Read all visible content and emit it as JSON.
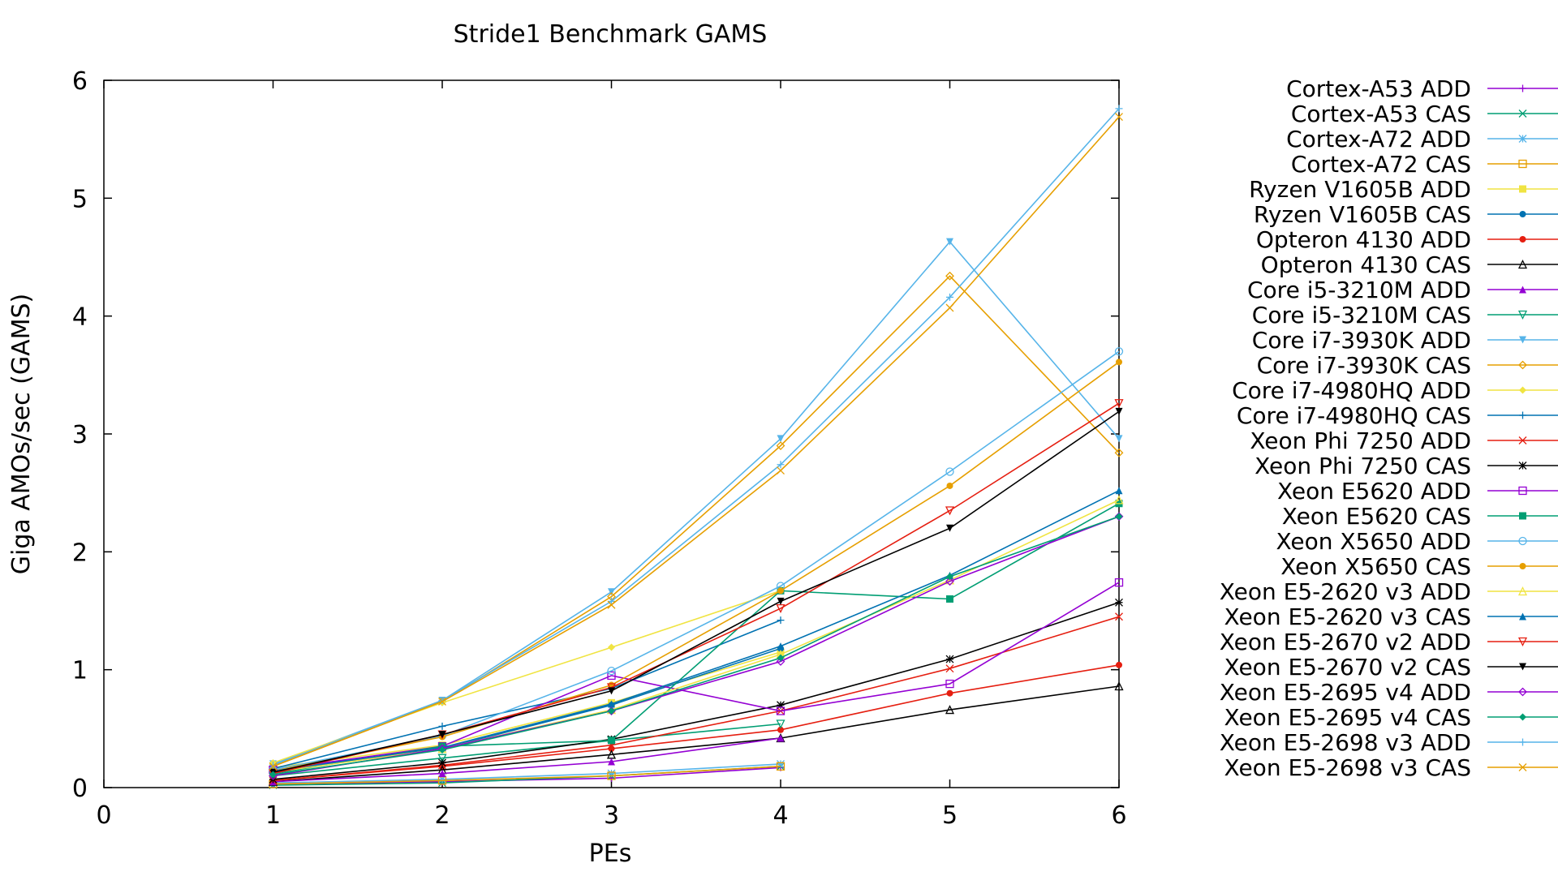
{
  "chart_data": {
    "type": "line",
    "title": "Stride1 Benchmark GAMS",
    "xlabel": "PEs",
    "ylabel": "Giga AMOs/sec (GAMS)",
    "xlim": [
      0,
      6
    ],
    "ylim": [
      0,
      6
    ],
    "xticks": [
      "0",
      "1",
      "2",
      "3",
      "4",
      "5",
      "6"
    ],
    "yticks": [
      "0",
      "1",
      "2",
      "3",
      "4",
      "5",
      "6"
    ],
    "grid": false,
    "legend_position": "right",
    "series": [
      {
        "name": "Cortex-A53 ADD",
        "color": "#9400d3",
        "marker": "plus",
        "x": [
          1,
          2,
          3,
          4
        ],
        "y": [
          0.03,
          0.05,
          0.08,
          0.17
        ]
      },
      {
        "name": "Cortex-A53 CAS",
        "color": "#009e73",
        "marker": "cross",
        "x": [
          1,
          2,
          3,
          4
        ],
        "y": [
          0.02,
          0.04,
          0.1,
          0.18
        ]
      },
      {
        "name": "Cortex-A72 ADD",
        "color": "#56b4e9",
        "marker": "star",
        "x": [
          1,
          2,
          3,
          4
        ],
        "y": [
          0.04,
          0.07,
          0.12,
          0.2
        ]
      },
      {
        "name": "Cortex-A72 CAS",
        "color": "#e69f00",
        "marker": "square-open",
        "x": [
          1,
          2,
          3,
          4
        ],
        "y": [
          0.03,
          0.06,
          0.1,
          0.18
        ]
      },
      {
        "name": "Ryzen V1605B ADD",
        "color": "#f0e442",
        "marker": "square",
        "x": [
          1,
          2,
          3,
          4
        ],
        "y": [
          0.17,
          0.36,
          0.72,
          1.15
        ]
      },
      {
        "name": "Ryzen V1605B CAS",
        "color": "#0072b2",
        "marker": "circle",
        "x": [
          1,
          2,
          3,
          4
        ],
        "y": [
          0.15,
          0.33,
          0.7,
          1.18
        ]
      },
      {
        "name": "Opteron 4130 ADD",
        "color": "#e51e10",
        "marker": "circle",
        "x": [
          1,
          2,
          3,
          4,
          5,
          6
        ],
        "y": [
          0.06,
          0.18,
          0.33,
          0.49,
          0.8,
          1.04
        ]
      },
      {
        "name": "Opteron 4130 CAS",
        "color": "#000000",
        "marker": "triangle-open",
        "x": [
          1,
          2,
          3,
          4,
          5,
          6
        ],
        "y": [
          0.05,
          0.15,
          0.28,
          0.42,
          0.66,
          0.86
        ]
      },
      {
        "name": "Core i5-3210M ADD",
        "color": "#9400d3",
        "marker": "triangle",
        "x": [
          1,
          2,
          3,
          4
        ],
        "y": [
          0.05,
          0.12,
          0.22,
          0.42
        ]
      },
      {
        "name": "Core i5-3210M CAS",
        "color": "#009e73",
        "marker": "triangle-down-open",
        "x": [
          1,
          2,
          3,
          4
        ],
        "y": [
          0.1,
          0.25,
          0.4,
          0.54
        ]
      },
      {
        "name": "Core i7-3930K ADD",
        "color": "#56b4e9",
        "marker": "triangle-down",
        "x": [
          1,
          2,
          3,
          4,
          5,
          6
        ],
        "y": [
          0.2,
          0.74,
          1.66,
          2.96,
          4.63,
          2.96
        ]
      },
      {
        "name": "Core i7-3930K CAS",
        "color": "#e69f00",
        "marker": "diamond-open",
        "x": [
          1,
          2,
          3,
          4,
          5,
          6
        ],
        "y": [
          0.18,
          0.73,
          1.62,
          2.9,
          4.34,
          2.84
        ]
      },
      {
        "name": "Core i7-4980HQ ADD",
        "color": "#f0e442",
        "marker": "diamond",
        "x": [
          1,
          2,
          3,
          4
        ],
        "y": [
          0.21,
          0.72,
          1.19,
          1.67
        ]
      },
      {
        "name": "Core i7-4980HQ CAS",
        "color": "#0072b2",
        "marker": "plus",
        "x": [
          1,
          2,
          3,
          4
        ],
        "y": [
          0.16,
          0.52,
          0.84,
          1.42
        ]
      },
      {
        "name": "Xeon Phi 7250 ADD",
        "color": "#e51e10",
        "marker": "cross",
        "x": [
          1,
          2,
          3,
          4,
          5,
          6
        ],
        "y": [
          0.06,
          0.19,
          0.36,
          0.65,
          1.01,
          1.45
        ]
      },
      {
        "name": "Xeon Phi 7250 CAS",
        "color": "#000000",
        "marker": "star",
        "x": [
          1,
          2,
          3,
          4,
          5,
          6
        ],
        "y": [
          0.07,
          0.21,
          0.41,
          0.7,
          1.09,
          1.57
        ]
      },
      {
        "name": "Xeon E5620 ADD",
        "color": "#9400d3",
        "marker": "square-open",
        "x": [
          1,
          2,
          3,
          4,
          5,
          6
        ],
        "y": [
          0.15,
          0.35,
          0.95,
          0.65,
          0.88,
          1.74
        ]
      },
      {
        "name": "Xeon E5620 CAS",
        "color": "#009e73",
        "marker": "square",
        "x": [
          1,
          2,
          3,
          4,
          5,
          6
        ],
        "y": [
          0.12,
          0.35,
          0.4,
          1.67,
          1.6,
          2.41
        ]
      },
      {
        "name": "Xeon X5650 ADD",
        "color": "#56b4e9",
        "marker": "circle-open",
        "x": [
          1,
          2,
          3,
          4,
          5,
          6
        ],
        "y": [
          0.15,
          0.44,
          0.99,
          1.71,
          2.68,
          3.7
        ]
      },
      {
        "name": "Xeon X5650 CAS",
        "color": "#e69f00",
        "marker": "circle",
        "x": [
          1,
          2,
          3,
          4,
          5,
          6
        ],
        "y": [
          0.14,
          0.43,
          0.87,
          1.67,
          2.56,
          3.61
        ]
      },
      {
        "name": "Xeon E5-2620 v3 ADD",
        "color": "#f0e442",
        "marker": "triangle-open",
        "x": [
          1,
          2,
          3,
          4,
          5,
          6
        ],
        "y": [
          0.13,
          0.33,
          0.66,
          1.13,
          1.76,
          2.44
        ]
      },
      {
        "name": "Xeon E5-2620 v3 CAS",
        "color": "#0072b2",
        "marker": "triangle",
        "x": [
          1,
          2,
          3,
          4,
          5,
          6
        ],
        "y": [
          0.14,
          0.34,
          0.71,
          1.2,
          1.8,
          2.52
        ]
      },
      {
        "name": "Xeon E5-2670 v2 ADD",
        "color": "#e51e10",
        "marker": "triangle-down-open",
        "x": [
          1,
          2,
          3,
          4,
          5,
          6
        ],
        "y": [
          0.12,
          0.45,
          0.85,
          1.52,
          2.35,
          3.26
        ]
      },
      {
        "name": "Xeon E5-2670 v2 CAS",
        "color": "#000000",
        "marker": "triangle-down",
        "x": [
          1,
          2,
          3,
          4,
          5,
          6
        ],
        "y": [
          0.13,
          0.45,
          0.82,
          1.58,
          2.2,
          3.19
        ]
      },
      {
        "name": "Xeon E5-2695 v4 ADD",
        "color": "#9400d3",
        "marker": "diamond-open",
        "x": [
          1,
          2,
          3,
          4,
          5,
          6
        ],
        "y": [
          0.1,
          0.33,
          0.65,
          1.07,
          1.75,
          2.3
        ]
      },
      {
        "name": "Xeon E5-2695 v4 CAS",
        "color": "#009e73",
        "marker": "diamond",
        "x": [
          1,
          2,
          3,
          4,
          5,
          6
        ],
        "y": [
          0.11,
          0.32,
          0.65,
          1.1,
          1.79,
          2.3
        ]
      },
      {
        "name": "Xeon E5-2698 v3 ADD",
        "color": "#56b4e9",
        "marker": "plus",
        "x": [
          1,
          2,
          3,
          4,
          5,
          6
        ],
        "y": [
          0.19,
          0.74,
          1.58,
          2.74,
          4.16,
          5.76
        ]
      },
      {
        "name": "Xeon E5-2698 v3 CAS",
        "color": "#e69f00",
        "marker": "cross",
        "x": [
          1,
          2,
          3,
          4,
          5,
          6
        ],
        "y": [
          0.18,
          0.73,
          1.55,
          2.69,
          4.07,
          5.69
        ]
      }
    ]
  }
}
